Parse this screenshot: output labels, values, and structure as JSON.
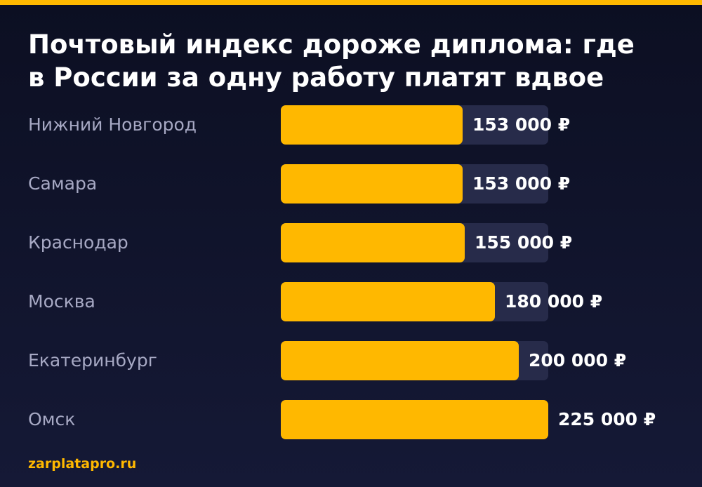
{
  "header": {
    "title_line1": "Почтовый индекс дороже диплома: где",
    "title_line2": "в России за одну работу платят вдвое"
  },
  "colors": {
    "background": "#0f1228",
    "accent": "#ffb800",
    "track": "#272b4a",
    "label": "#a7a9c4",
    "value": "#ffffff"
  },
  "chart_data": {
    "type": "bar",
    "orientation": "horizontal",
    "title": "Почтовый индекс дороже диплома: где в России за одну работу платят вдвое",
    "categories": [
      "Нижний Новгород",
      "Самара",
      "Краснодар",
      "Москва",
      "Екатеринбург",
      "Омск"
    ],
    "values": [
      153000,
      153000,
      155000,
      180000,
      200000,
      225000
    ],
    "value_labels": [
      "153 000 ₽",
      "153 000 ₽",
      "155 000 ₽",
      "180 000 ₽",
      "200 000 ₽",
      "225 000 ₽"
    ],
    "xlim": [
      0,
      225000
    ],
    "unit": "₽",
    "grid": false,
    "legend": "none"
  },
  "footer": {
    "source": "zarplatapro.ru"
  }
}
